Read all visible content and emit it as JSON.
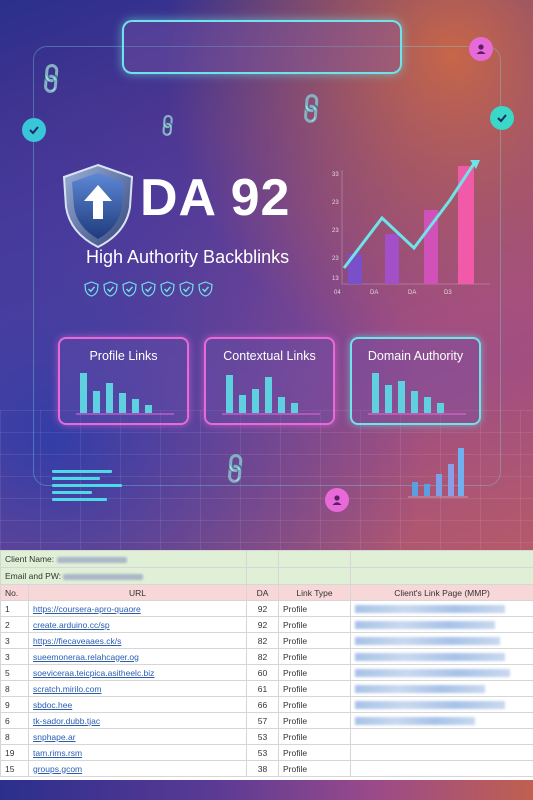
{
  "hero": {
    "title": "DA 92",
    "subtitle": "High Authority Backblinks",
    "check_count": 7,
    "accent": "#6fe3e8",
    "pink": "#e86ad8"
  },
  "main_chart": {
    "y_ticks": [
      "33",
      "23",
      "23",
      "23",
      "13"
    ],
    "x_ticks": [
      "04",
      "DA",
      "DA",
      "D3"
    ]
  },
  "cards": [
    {
      "title": "Profile Links"
    },
    {
      "title": "Contextual Links"
    },
    {
      "title": "Domain Authority"
    }
  ],
  "sheet": {
    "client_label": "Client Name:",
    "email_label": "Email and PW:",
    "headers": {
      "no": "No.",
      "url": "URL",
      "da": "DA",
      "type": "Link Type",
      "mmp": "Client's Link Page (MMP)"
    },
    "rows": [
      {
        "no": "1",
        "url": "https://coursera-apro-quaore",
        "da": "92",
        "type": "Profile"
      },
      {
        "no": "2",
        "url": "create.arduino.cc/sp",
        "da": "92",
        "type": "Profile"
      },
      {
        "no": "3",
        "url": "https://fiecaveaaes.ck/s",
        "da": "82",
        "type": "Profile"
      },
      {
        "no": "3",
        "url": "sueemoneraa.relahcager.og",
        "da": "82",
        "type": "Profile"
      },
      {
        "no": "5",
        "url": "soeviceraa.teicpica.asitheelc.biz",
        "da": "60",
        "type": "Profile"
      },
      {
        "no": "8",
        "url": "scratch.mirilo.com",
        "da": "61",
        "type": "Profile"
      },
      {
        "no": "9",
        "url": "sbdoc.hee",
        "da": "66",
        "type": "Profile"
      },
      {
        "no": "6",
        "url": "tk-sador.dubb.tjac",
        "da": "57",
        "type": "Profile"
      },
      {
        "no": "8",
        "url": "snphape.ar",
        "da": "53",
        "type": "Profile"
      },
      {
        "no": "19",
        "url": "tam.rims.rsm",
        "da": "53",
        "type": "Profile"
      },
      {
        "no": "15",
        "url": "groups.gcom",
        "da": "38",
        "type": "Profile"
      }
    ]
  }
}
